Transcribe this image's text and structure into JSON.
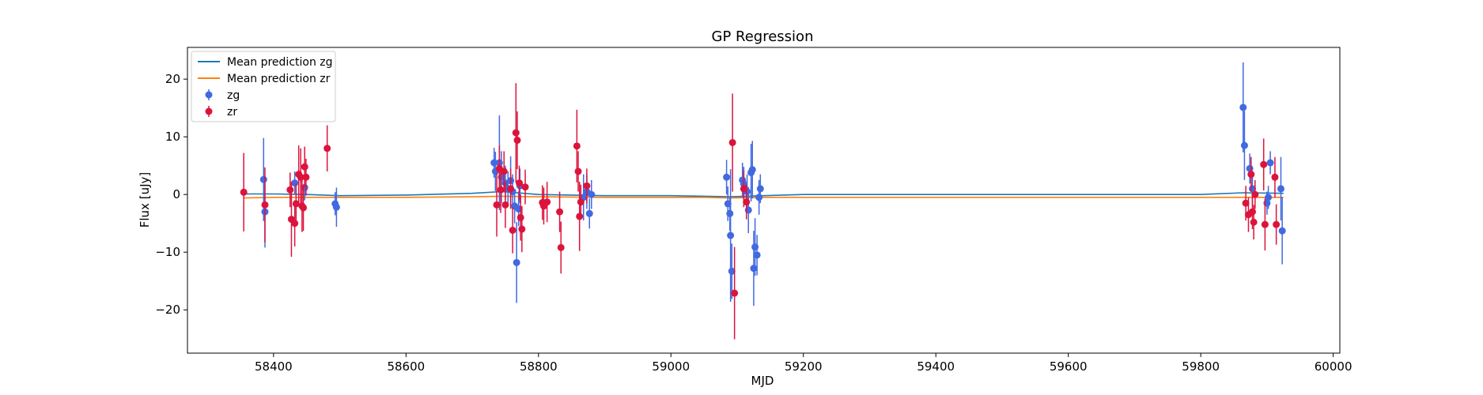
{
  "chart_data": {
    "type": "scatter",
    "title": "GP Regression",
    "xlabel": "MJD",
    "ylabel": "Flux [uJy]",
    "xlim": [
      58270,
      60010
    ],
    "ylim": [
      -27.5,
      25.5
    ],
    "xticks": [
      58400,
      58600,
      58800,
      59000,
      59200,
      59400,
      59600,
      59800,
      60000
    ],
    "yticks": [
      -20,
      -10,
      0,
      10,
      20
    ],
    "legend_position": "top-left",
    "legend": [
      "Mean prediction zg",
      "Mean prediction zr",
      "zg",
      "zr"
    ],
    "colors": {
      "zg_line": "#1f77b4",
      "zr_line": "#ff7f0e",
      "zg_points": "#4169e1",
      "zr_points": "#dc143c"
    },
    "lines": [
      {
        "name": "Mean prediction zg",
        "x": [
          58355,
          58400,
          58450,
          58500,
          58600,
          58700,
          58745,
          58800,
          58900,
          59000,
          59050,
          59090,
          59140,
          59200,
          59400,
          59600,
          59800,
          59865,
          59925
        ],
        "y": [
          0.1,
          0.1,
          0.0,
          -0.2,
          -0.1,
          0.2,
          0.5,
          0.0,
          -0.2,
          -0.2,
          -0.3,
          -0.4,
          -0.2,
          0.0,
          0.0,
          0.0,
          0.0,
          0.3,
          0.2
        ]
      },
      {
        "name": "Mean prediction zr",
        "x": [
          58355,
          58400,
          58450,
          58500,
          58600,
          58700,
          58745,
          58800,
          58900,
          59000,
          59050,
          59090,
          59140,
          59200,
          59400,
          59600,
          59800,
          59865,
          59925
        ],
        "y": [
          -0.6,
          -0.5,
          -0.5,
          -0.5,
          -0.5,
          -0.4,
          -0.3,
          -0.4,
          -0.5,
          -0.5,
          -0.5,
          -0.6,
          -0.5,
          -0.5,
          -0.5,
          -0.5,
          -0.5,
          -0.5,
          -0.5
        ]
      }
    ],
    "series": [
      {
        "name": "zg",
        "points": [
          [
            58385,
            2.6,
            7.2
          ],
          [
            58387,
            -3.0,
            6.2
          ],
          [
            58432,
            2.0,
            2.0
          ],
          [
            58447,
            1.2,
            2.2
          ],
          [
            58493,
            -1.6,
            2.0
          ],
          [
            58495,
            -2.2,
            3.4
          ],
          [
            58733,
            5.5,
            2.6
          ],
          [
            58735,
            4.0,
            3.4
          ],
          [
            58741,
            5.5,
            8.2
          ],
          [
            58744,
            3.0,
            4.5
          ],
          [
            58750,
            2.0,
            3.0
          ],
          [
            58754,
            1.0,
            3.0
          ],
          [
            58758,
            2.4,
            4.2
          ],
          [
            58761,
            0.5,
            3.0
          ],
          [
            58764,
            -2.0,
            3.0
          ],
          [
            58767,
            -11.8,
            7.0
          ],
          [
            58770,
            -2.5,
            3.0
          ],
          [
            58772,
            1.5,
            3.0
          ],
          [
            58868,
            -0.5,
            4.0
          ],
          [
            58873,
            0.5,
            3.0
          ],
          [
            58877,
            -3.3,
            2.6
          ],
          [
            58880,
            0.0,
            2.5
          ],
          [
            59084,
            3.0,
            3.0
          ],
          [
            59086,
            -1.6,
            3.0
          ],
          [
            59089,
            -3.3,
            3.0
          ],
          [
            59090,
            -7.1,
            11.5
          ],
          [
            59092,
            -13.3,
            4.8
          ],
          [
            59108,
            2.5,
            3.0
          ],
          [
            59110,
            1.8,
            3.0
          ],
          [
            59115,
            0.5,
            3.0
          ],
          [
            59117,
            -2.7,
            4.0
          ],
          [
            59121,
            3.8,
            5.0
          ],
          [
            59123,
            4.3,
            5.0
          ],
          [
            59125,
            -12.8,
            6.5
          ],
          [
            59127,
            -9.1,
            5.0
          ],
          [
            59130,
            -10.5,
            3.5
          ],
          [
            59133,
            -0.5,
            3.0
          ],
          [
            59135,
            1.0,
            2.5
          ],
          [
            59864,
            15.1,
            7.8
          ],
          [
            59866,
            8.5,
            6.0
          ],
          [
            59874,
            4.5,
            2.6
          ],
          [
            59878,
            1.0,
            3.0
          ],
          [
            59900,
            -1.5,
            2.0
          ],
          [
            59902,
            -0.5,
            2.0
          ],
          [
            59905,
            5.5,
            2.0
          ],
          [
            59921,
            1.0,
            5.5
          ],
          [
            59923,
            -6.3,
            5.8
          ]
        ]
      },
      {
        "name": "zr",
        "points": [
          [
            58355,
            0.4,
            6.8
          ],
          [
            58387,
            -1.8,
            6.5
          ],
          [
            58425,
            0.8,
            3.0
          ],
          [
            58427,
            -4.3,
            6.5
          ],
          [
            58432,
            -5.0,
            4.0
          ],
          [
            58434,
            -1.6,
            3.5
          ],
          [
            58438,
            3.5,
            5.0
          ],
          [
            58441,
            3.0,
            5.0
          ],
          [
            58443,
            -2.0,
            4.5
          ],
          [
            58445,
            -2.3,
            4.0
          ],
          [
            58447,
            4.8,
            3.5
          ],
          [
            58449,
            3.0,
            3.2
          ],
          [
            58481,
            8.0,
            4.0
          ],
          [
            58737,
            -1.8,
            5.5
          ],
          [
            58741,
            4.5,
            4.0
          ],
          [
            58743,
            0.8,
            4.0
          ],
          [
            58748,
            4.0,
            3.5
          ],
          [
            58750,
            -1.8,
            4.0
          ],
          [
            58758,
            1.0,
            3.5
          ],
          [
            58761,
            -6.2,
            4.0
          ],
          [
            58766,
            10.7,
            8.6
          ],
          [
            58768,
            9.4,
            5.0
          ],
          [
            58771,
            2.0,
            3.0
          ],
          [
            58773,
            -4.0,
            4.0
          ],
          [
            58775,
            -6.0,
            4.0
          ],
          [
            58780,
            1.3,
            3.0
          ],
          [
            58806,
            -1.4,
            3.0
          ],
          [
            58808,
            -2.0,
            3.2
          ],
          [
            58813,
            -1.3,
            3.5
          ],
          [
            58832,
            -3.0,
            3.5
          ],
          [
            58834,
            -9.2,
            4.5
          ],
          [
            58858,
            8.4,
            6.3
          ],
          [
            58860,
            4.0,
            3.5
          ],
          [
            58862,
            -3.8,
            6.0
          ],
          [
            58864,
            -1.3,
            3.0
          ],
          [
            58873,
            1.5,
            3.0
          ],
          [
            59093,
            9.0,
            8.5
          ],
          [
            59096,
            -17.1,
            8.0
          ],
          [
            59110,
            1.0,
            3.2
          ],
          [
            59114,
            -1.3,
            3.0
          ],
          [
            59868,
            -1.5,
            3.0
          ],
          [
            59872,
            -3.5,
            3.0
          ],
          [
            59876,
            3.5,
            3.0
          ],
          [
            59878,
            -3.0,
            3.0
          ],
          [
            59880,
            -4.8,
            3.0
          ],
          [
            59882,
            0.0,
            2.5
          ],
          [
            59895,
            5.2,
            4.5
          ],
          [
            59897,
            -5.2,
            4.5
          ],
          [
            59912,
            3.0,
            3.5
          ],
          [
            59914,
            -5.2,
            3.5
          ]
        ]
      }
    ]
  }
}
